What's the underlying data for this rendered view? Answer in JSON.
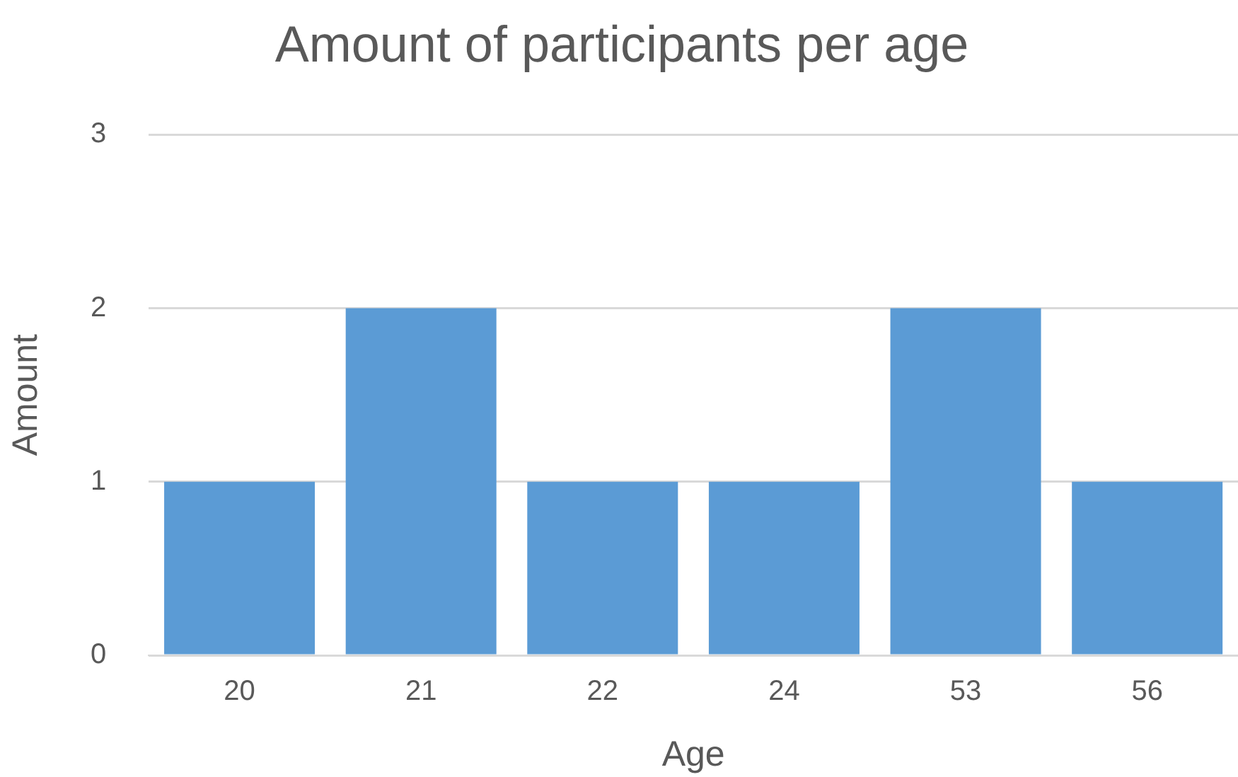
{
  "chart_data": {
    "type": "bar",
    "title": "Amount of participants per age",
    "xlabel": "Age",
    "ylabel": "Amount",
    "categories": [
      "20",
      "21",
      "22",
      "24",
      "53",
      "56"
    ],
    "values": [
      1,
      2,
      1,
      1,
      2,
      1
    ],
    "color": "#5b9bd5",
    "ylim": [
      0,
      3
    ],
    "yticks": [
      0,
      1,
      2,
      3
    ],
    "grid": "y",
    "legend": false
  }
}
